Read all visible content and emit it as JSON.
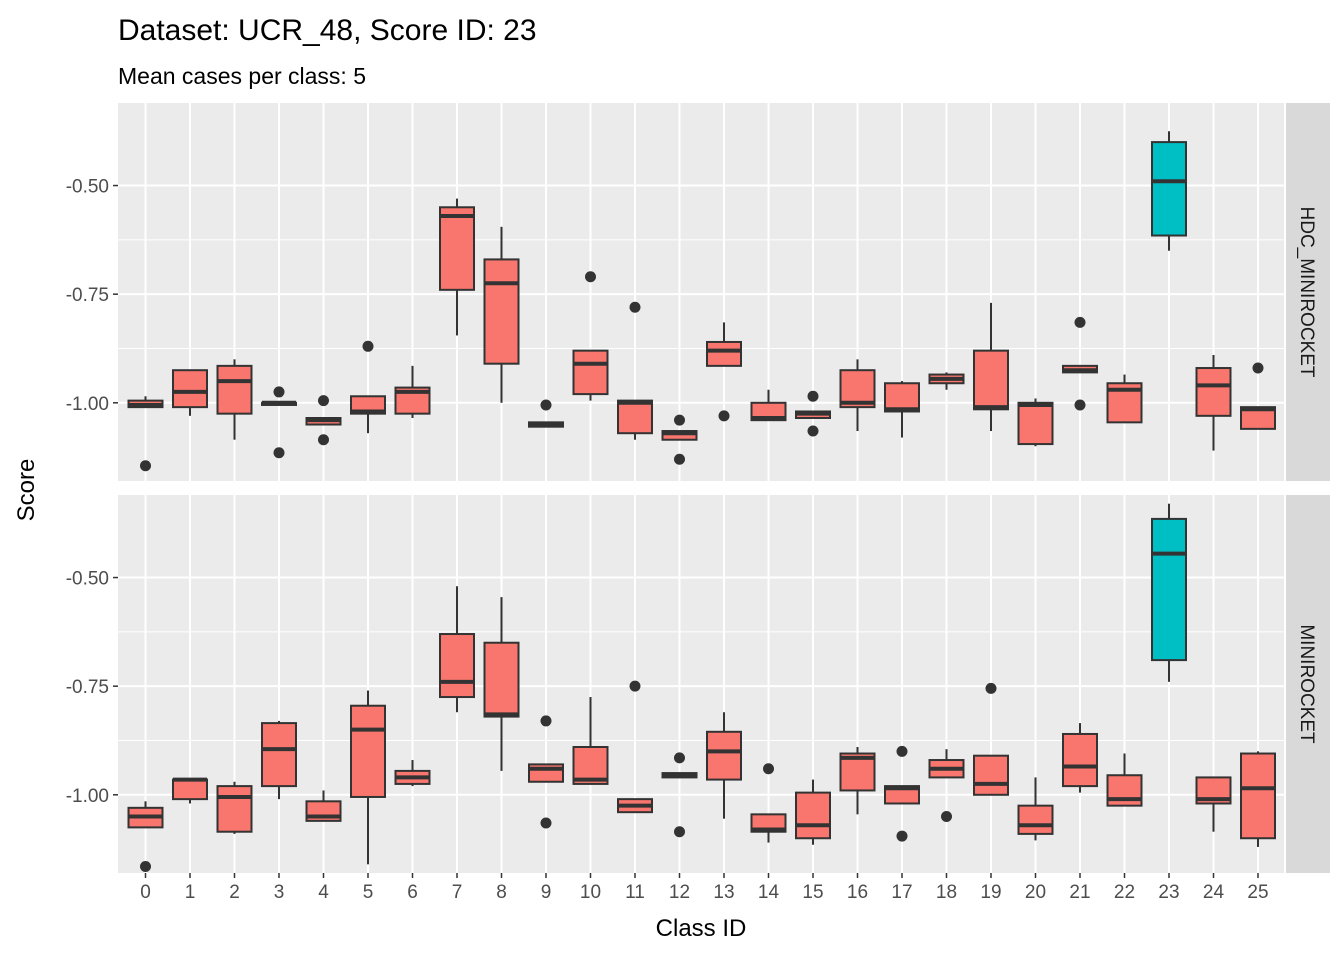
{
  "chart_data": {
    "type": "boxplot",
    "title": "Dataset: UCR_48, Score ID: 23",
    "subtitle": "Mean cases per class: 5",
    "xlabel": "Class ID",
    "ylabel": "Score",
    "categories": [
      "0",
      "1",
      "2",
      "3",
      "4",
      "5",
      "6",
      "7",
      "8",
      "9",
      "10",
      "11",
      "12",
      "13",
      "14",
      "15",
      "16",
      "17",
      "18",
      "19",
      "20",
      "21",
      "22",
      "23",
      "24",
      "25"
    ],
    "y_ticks": [
      -0.5,
      -0.75,
      -1.0
    ],
    "y_tick_labels": [
      "-0.50",
      "-0.75",
      "-1.00"
    ],
    "ylim": [
      -1.18,
      -0.31
    ],
    "highlight_category": "23",
    "colors": {
      "default_fill": "#F8766D",
      "highlight_fill": "#00BFC4",
      "panel_bg": "#EBEBEB",
      "strip_bg": "#D9D9D9",
      "grid": "#FFFFFF",
      "box_line": "#333333"
    },
    "panels": [
      {
        "label": "HDC_MINIROCKET",
        "boxes": [
          {
            "category": "0",
            "whisker_low": -1.01,
            "q1": -1.01,
            "median": -1.005,
            "q3": -0.995,
            "whisker_high": -0.985,
            "outliers": [
              -1.145
            ]
          },
          {
            "category": "1",
            "whisker_low": -1.03,
            "q1": -1.01,
            "median": -0.975,
            "q3": -0.925,
            "whisker_high": -0.925,
            "outliers": []
          },
          {
            "category": "2",
            "whisker_low": -1.085,
            "q1": -1.025,
            "median": -0.95,
            "q3": -0.915,
            "whisker_high": -0.9,
            "outliers": []
          },
          {
            "category": "3",
            "whisker_low": -1.005,
            "q1": -1.005,
            "median": -1.0,
            "q3": -1.0,
            "whisker_high": -1.0,
            "outliers": [
              -0.975,
              -1.115
            ]
          },
          {
            "category": "4",
            "whisker_low": -1.05,
            "q1": -1.05,
            "median": -1.04,
            "q3": -1.035,
            "whisker_high": -1.035,
            "outliers": [
              -0.995,
              -1.085
            ]
          },
          {
            "category": "5",
            "whisker_low": -1.07,
            "q1": -1.025,
            "median": -1.02,
            "q3": -0.985,
            "whisker_high": -0.985,
            "outliers": [
              -0.87
            ]
          },
          {
            "category": "6",
            "whisker_low": -1.035,
            "q1": -1.025,
            "median": -0.975,
            "q3": -0.965,
            "whisker_high": -0.915,
            "outliers": []
          },
          {
            "category": "7",
            "whisker_low": -0.845,
            "q1": -0.74,
            "median": -0.57,
            "q3": -0.55,
            "whisker_high": -0.53,
            "outliers": []
          },
          {
            "category": "8",
            "whisker_low": -1.0,
            "q1": -0.91,
            "median": -0.725,
            "q3": -0.67,
            "whisker_high": -0.595,
            "outliers": []
          },
          {
            "category": "9",
            "whisker_low": -1.055,
            "q1": -1.055,
            "median": -1.05,
            "q3": -1.045,
            "whisker_high": -1.045,
            "outliers": [
              -1.005
            ]
          },
          {
            "category": "10",
            "whisker_low": -0.995,
            "q1": -0.98,
            "median": -0.91,
            "q3": -0.88,
            "whisker_high": -0.88,
            "outliers": [
              -0.71
            ]
          },
          {
            "category": "11",
            "whisker_low": -1.085,
            "q1": -1.07,
            "median": -1.0,
            "q3": -0.995,
            "whisker_high": -0.995,
            "outliers": [
              -0.78
            ]
          },
          {
            "category": "12",
            "whisker_low": -1.085,
            "q1": -1.085,
            "median": -1.07,
            "q3": -1.065,
            "whisker_high": -1.065,
            "outliers": [
              -1.04,
              -1.13
            ]
          },
          {
            "category": "13",
            "whisker_low": -0.915,
            "q1": -0.915,
            "median": -0.88,
            "q3": -0.86,
            "whisker_high": -0.815,
            "outliers": [
              -1.03
            ]
          },
          {
            "category": "14",
            "whisker_low": -1.04,
            "q1": -1.04,
            "median": -1.035,
            "q3": -1.0,
            "whisker_high": -0.97,
            "outliers": []
          },
          {
            "category": "15",
            "whisker_low": -1.035,
            "q1": -1.035,
            "median": -1.025,
            "q3": -1.02,
            "whisker_high": -1.02,
            "outliers": [
              -0.985,
              -1.065
            ]
          },
          {
            "category": "16",
            "whisker_low": -1.065,
            "q1": -1.01,
            "median": -1.0,
            "q3": -0.925,
            "whisker_high": -0.9,
            "outliers": []
          },
          {
            "category": "17",
            "whisker_low": -1.08,
            "q1": -1.02,
            "median": -1.015,
            "q3": -0.955,
            "whisker_high": -0.95,
            "outliers": []
          },
          {
            "category": "18",
            "whisker_low": -0.97,
            "q1": -0.955,
            "median": -0.945,
            "q3": -0.935,
            "whisker_high": -0.93,
            "outliers": []
          },
          {
            "category": "19",
            "whisker_low": -1.065,
            "q1": -1.015,
            "median": -1.01,
            "q3": -0.88,
            "whisker_high": -0.77,
            "outliers": []
          },
          {
            "category": "20",
            "whisker_low": -1.1,
            "q1": -1.095,
            "median": -1.005,
            "q3": -1.0,
            "whisker_high": -0.99,
            "outliers": []
          },
          {
            "category": "21",
            "whisker_low": -0.93,
            "q1": -0.93,
            "median": -0.925,
            "q3": -0.915,
            "whisker_high": -0.915,
            "outliers": [
              -0.815,
              -1.005
            ]
          },
          {
            "category": "22",
            "whisker_low": -1.045,
            "q1": -1.045,
            "median": -0.97,
            "q3": -0.955,
            "whisker_high": -0.935,
            "outliers": []
          },
          {
            "category": "23",
            "whisker_low": -0.65,
            "q1": -0.615,
            "median": -0.49,
            "q3": -0.4,
            "whisker_high": -0.375,
            "outliers": []
          },
          {
            "category": "24",
            "whisker_low": -1.11,
            "q1": -1.03,
            "median": -0.96,
            "q3": -0.92,
            "whisker_high": -0.89,
            "outliers": []
          },
          {
            "category": "25",
            "whisker_low": -1.06,
            "q1": -1.06,
            "median": -1.015,
            "q3": -1.01,
            "whisker_high": -1.01,
            "outliers": [
              -0.92
            ]
          }
        ]
      },
      {
        "label": "MINIROCKET",
        "boxes": [
          {
            "category": "0",
            "whisker_low": -1.075,
            "q1": -1.075,
            "median": -1.05,
            "q3": -1.03,
            "whisker_high": -1.015,
            "outliers": [
              -1.165
            ]
          },
          {
            "category": "1",
            "whisker_low": -1.02,
            "q1": -1.01,
            "median": -0.965,
            "q3": -0.965,
            "whisker_high": -0.965,
            "outliers": []
          },
          {
            "category": "2",
            "whisker_low": -1.09,
            "q1": -1.085,
            "median": -1.005,
            "q3": -0.98,
            "whisker_high": -0.97,
            "outliers": []
          },
          {
            "category": "3",
            "whisker_low": -1.01,
            "q1": -0.98,
            "median": -0.895,
            "q3": -0.835,
            "whisker_high": -0.83,
            "outliers": []
          },
          {
            "category": "4",
            "whisker_low": -1.06,
            "q1": -1.06,
            "median": -1.05,
            "q3": -1.015,
            "whisker_high": -0.99,
            "outliers": []
          },
          {
            "category": "5",
            "whisker_low": -1.16,
            "q1": -1.005,
            "median": -0.85,
            "q3": -0.795,
            "whisker_high": -0.76,
            "outliers": []
          },
          {
            "category": "6",
            "whisker_low": -0.98,
            "q1": -0.975,
            "median": -0.96,
            "q3": -0.945,
            "whisker_high": -0.92,
            "outliers": []
          },
          {
            "category": "7",
            "whisker_low": -0.81,
            "q1": -0.775,
            "median": -0.74,
            "q3": -0.63,
            "whisker_high": -0.52,
            "outliers": []
          },
          {
            "category": "8",
            "whisker_low": -0.945,
            "q1": -0.82,
            "median": -0.815,
            "q3": -0.65,
            "whisker_high": -0.545,
            "outliers": []
          },
          {
            "category": "9",
            "whisker_low": -0.97,
            "q1": -0.97,
            "median": -0.94,
            "q3": -0.93,
            "whisker_high": -0.93,
            "outliers": [
              -0.83,
              -1.065
            ]
          },
          {
            "category": "10",
            "whisker_low": -0.975,
            "q1": -0.975,
            "median": -0.965,
            "q3": -0.89,
            "whisker_high": -0.775,
            "outliers": []
          },
          {
            "category": "11",
            "whisker_low": -1.04,
            "q1": -1.04,
            "median": -1.025,
            "q3": -1.01,
            "whisker_high": -1.01,
            "outliers": [
              -0.75
            ]
          },
          {
            "category": "12",
            "whisker_low": -0.96,
            "q1": -0.96,
            "median": -0.955,
            "q3": -0.95,
            "whisker_high": -0.95,
            "outliers": [
              -0.915,
              -1.085
            ]
          },
          {
            "category": "13",
            "whisker_low": -1.055,
            "q1": -0.965,
            "median": -0.9,
            "q3": -0.855,
            "whisker_high": -0.81,
            "outliers": []
          },
          {
            "category": "14",
            "whisker_low": -1.11,
            "q1": -1.085,
            "median": -1.08,
            "q3": -1.045,
            "whisker_high": -1.045,
            "outliers": [
              -0.94
            ]
          },
          {
            "category": "15",
            "whisker_low": -1.115,
            "q1": -1.1,
            "median": -1.07,
            "q3": -0.995,
            "whisker_high": -0.965,
            "outliers": []
          },
          {
            "category": "16",
            "whisker_low": -1.045,
            "q1": -0.99,
            "median": -0.915,
            "q3": -0.905,
            "whisker_high": -0.89,
            "outliers": []
          },
          {
            "category": "17",
            "whisker_low": -1.02,
            "q1": -1.02,
            "median": -0.985,
            "q3": -0.98,
            "whisker_high": -0.98,
            "outliers": [
              -0.9,
              -1.095
            ]
          },
          {
            "category": "18",
            "whisker_low": -0.96,
            "q1": -0.96,
            "median": -0.94,
            "q3": -0.92,
            "whisker_high": -0.895,
            "outliers": [
              -1.05
            ]
          },
          {
            "category": "19",
            "whisker_low": -1.0,
            "q1": -1.0,
            "median": -0.975,
            "q3": -0.91,
            "whisker_high": -0.91,
            "outliers": [
              -0.755
            ]
          },
          {
            "category": "20",
            "whisker_low": -1.105,
            "q1": -1.09,
            "median": -1.07,
            "q3": -1.025,
            "whisker_high": -0.96,
            "outliers": []
          },
          {
            "category": "21",
            "whisker_low": -0.995,
            "q1": -0.98,
            "median": -0.935,
            "q3": -0.86,
            "whisker_high": -0.835,
            "outliers": []
          },
          {
            "category": "22",
            "whisker_low": -1.025,
            "q1": -1.025,
            "median": -1.01,
            "q3": -0.955,
            "whisker_high": -0.905,
            "outliers": []
          },
          {
            "category": "23",
            "whisker_low": -0.74,
            "q1": -0.69,
            "median": -0.445,
            "q3": -0.365,
            "whisker_high": -0.33,
            "outliers": []
          },
          {
            "category": "24",
            "whisker_low": -1.085,
            "q1": -1.02,
            "median": -1.01,
            "q3": -0.96,
            "whisker_high": -0.96,
            "outliers": []
          },
          {
            "category": "25",
            "whisker_low": -1.12,
            "q1": -1.1,
            "median": -0.985,
            "q3": -0.905,
            "whisker_high": -0.9,
            "outliers": []
          }
        ]
      }
    ]
  }
}
